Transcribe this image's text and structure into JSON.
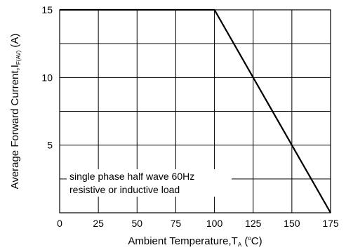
{
  "chart_data": {
    "type": "line",
    "title": "",
    "xlabel": {
      "main": "Ambient Temperature,T",
      "sub": "A",
      "open": " (",
      "sup": "o",
      "unit": "C)"
    },
    "ylabel": {
      "main": "Average Forward Current,I",
      "sub": "F(AV)",
      "unit": " (A)"
    },
    "xlim": [
      0,
      175
    ],
    "ylim": [
      0,
      15
    ],
    "x_ticks": [
      0,
      25,
      50,
      75,
      100,
      125,
      150,
      175
    ],
    "y_ticks": [
      5,
      10,
      15
    ],
    "y_grid": [
      2.5,
      5,
      7.5,
      10,
      12.5,
      15
    ],
    "grid": true,
    "series": [
      {
        "x": [
          0,
          100,
          175
        ],
        "y": [
          15,
          15,
          0
        ]
      }
    ],
    "annotation": [
      "single phase half wave 60Hz",
      "resistive or inductive load"
    ],
    "colors": {
      "line": "#000000",
      "grid": "#000000",
      "background": "#ffffff"
    }
  }
}
